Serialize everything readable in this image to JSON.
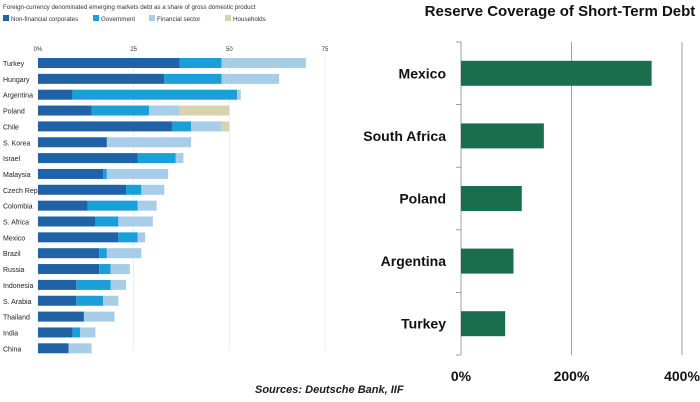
{
  "source": "Sources: Deutsche Bank, IIF",
  "chart_data": [
    {
      "type": "bar",
      "orientation": "horizontal",
      "stacked": true,
      "title": "Foreign-currency denominated emerging markets debt as a share of gross domestic product",
      "xlim": [
        0,
        75
      ],
      "xticks": [
        "0%",
        "25",
        "50",
        "75"
      ],
      "legend_position": "top",
      "categories": [
        "Turkey",
        "Hungary",
        "Argentina",
        "Poland",
        "Chile",
        "S. Korea",
        "Israel",
        "Malaysia",
        "Czech Rep.",
        "Colombia",
        "S. Africa",
        "Mexico",
        "Brazil",
        "Russia",
        "Indonesia",
        "S. Arabia",
        "Thailand",
        "India",
        "China"
      ],
      "series": [
        {
          "name": "Non-financial corporates",
          "color": "#1f63a6",
          "values": [
            37,
            33,
            9,
            14,
            35,
            18,
            26,
            17,
            23,
            13,
            15,
            21,
            16,
            16,
            10,
            10,
            12,
            9,
            8
          ]
        },
        {
          "name": "Government",
          "color": "#1b9fd9",
          "values": [
            11,
            15,
            43,
            15,
            5,
            0,
            10,
            1,
            4,
            13,
            6,
            5,
            2,
            3,
            9,
            7,
            0,
            2,
            0
          ]
        },
        {
          "name": "Financial sector",
          "color": "#a7cde9",
          "values": [
            22,
            15,
            1,
            8,
            8,
            22,
            2,
            16,
            6,
            5,
            9,
            2,
            9,
            5,
            4,
            4,
            8,
            4,
            6
          ]
        },
        {
          "name": "Households",
          "color": "#d8d3ad",
          "values": [
            0,
            0,
            0,
            13,
            2,
            0,
            0,
            0,
            0,
            0,
            0,
            0,
            0,
            0,
            0,
            0,
            0,
            0,
            0
          ]
        }
      ]
    },
    {
      "type": "bar",
      "orientation": "horizontal",
      "title": "Reserve Coverage of Short-Term Debt",
      "categories": [
        "Mexico",
        "South Africa",
        "Poland",
        "Argentina",
        "Turkey"
      ],
      "values": [
        345,
        150,
        110,
        95,
        80
      ],
      "unit": "%",
      "xlim": [
        0,
        400
      ],
      "xticks": [
        "0%",
        "200%",
        "400%"
      ],
      "bar_color": "#1a6e4d",
      "grid": true
    }
  ]
}
